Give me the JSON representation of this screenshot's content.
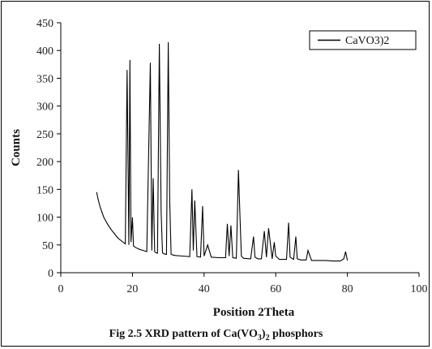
{
  "chart_data": {
    "type": "line",
    "xlabel": "Position 2Theta",
    "ylabel": "Counts",
    "xlim": [
      0,
      100
    ],
    "ylim": [
      0,
      450
    ],
    "xticks": [
      0,
      20,
      40,
      60,
      80,
      100
    ],
    "yticks": [
      0,
      50,
      100,
      150,
      200,
      250,
      300,
      350,
      400,
      450
    ],
    "grid": false,
    "legend_position": "top-right",
    "series": [
      {
        "name": "CaVO3)2",
        "x": [
          10.0,
          10.5,
          11.0,
          12.0,
          13.0,
          14.0,
          15.0,
          16.0,
          17.0,
          18.0,
          18.5,
          19.0,
          19.3,
          19.6,
          20.0,
          20.3,
          21.0,
          22.0,
          23.0,
          24.0,
          25.0,
          25.4,
          25.8,
          26.2,
          26.6,
          27.0,
          27.5,
          28.0,
          28.4,
          28.8,
          29.5,
          30.0,
          30.4,
          30.8,
          31.2,
          32.0,
          34.0,
          36.0,
          36.6,
          37.0,
          37.4,
          38.0,
          39.0,
          39.6,
          40.0,
          41.0,
          42.0,
          44.0,
          46.0,
          46.5,
          47.0,
          47.5,
          48.0,
          49.0,
          49.6,
          50.0,
          50.4,
          51.0,
          53.0,
          53.8,
          54.2,
          55.0,
          56.0,
          56.8,
          57.4,
          58.0,
          59.0,
          59.6,
          60.0,
          61.0,
          62.0,
          63.0,
          63.6,
          64.0,
          65.0,
          65.6,
          66.0,
          67.0,
          68.5,
          69.0,
          70.0,
          72.0,
          74.0,
          76.0,
          78.0,
          79.0,
          79.5,
          80.0
        ],
        "y": [
          145,
          130,
          118,
          100,
          88,
          78,
          70,
          62,
          57,
          52,
          365,
          50,
          383,
          55,
          100,
          48,
          45,
          42,
          40,
          38,
          378,
          40,
          170,
          38,
          36,
          35,
          412,
          110,
          36,
          34,
          33,
          415,
          130,
          33,
          32,
          31,
          30,
          29,
          150,
          40,
          130,
          29,
          28,
          120,
          30,
          50,
          28,
          27,
          27,
          88,
          30,
          85,
          27,
          26,
          185,
          105,
          30,
          26,
          25,
          65,
          28,
          25,
          25,
          75,
          28,
          80,
          25,
          55,
          30,
          24,
          24,
          24,
          90,
          28,
          24,
          65,
          25,
          23,
          23,
          40,
          22,
          22,
          22,
          21,
          21,
          25,
          38,
          22
        ]
      }
    ]
  },
  "caption": {
    "prefix": "Fig 2.5 XRD pattern of Ca(VO",
    "sub1": "3",
    "mid": ")",
    "sub2": "2",
    "suffix": " phosphors"
  }
}
